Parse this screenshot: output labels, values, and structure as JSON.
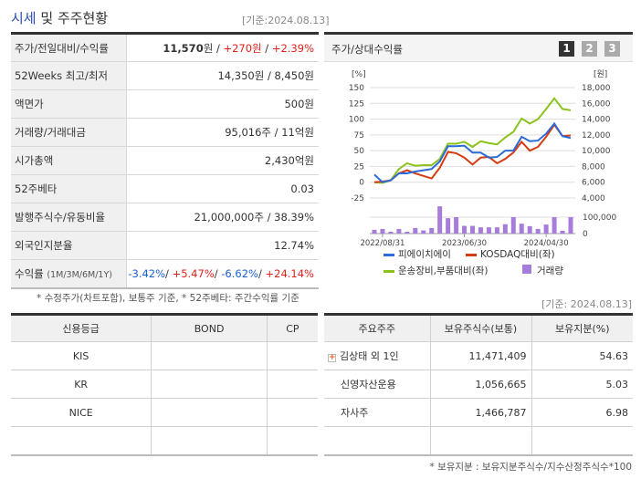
{
  "header": {
    "title_hl": "시세",
    "title_rest": " 및 주주현황",
    "date": "[기준:2024.08.13]"
  },
  "info": [
    {
      "k": "주가/전일대비/수익률",
      "v": [
        {
          "t": "11,570",
          "c": "b"
        },
        {
          "t": "원 / ",
          "c": ""
        },
        {
          "t": "+270원",
          "c": "red"
        },
        {
          "t": " / ",
          "c": ""
        },
        {
          "t": "+2.39%",
          "c": "red"
        }
      ]
    },
    {
      "k": "52Weeks 최고/최저",
      "v": [
        {
          "t": "14,350원 / 8,450원",
          "c": ""
        }
      ]
    },
    {
      "k": "액면가",
      "v": [
        {
          "t": "500원",
          "c": ""
        }
      ]
    },
    {
      "k": "거래량/거래대금",
      "v": [
        {
          "t": "95,016주 / 11억원",
          "c": ""
        }
      ]
    },
    {
      "k": "시가총액",
      "v": [
        {
          "t": "2,430억원",
          "c": ""
        }
      ]
    },
    {
      "k": "52주베타",
      "v": [
        {
          "t": "0.03",
          "c": ""
        }
      ]
    },
    {
      "k": "발행주식수/유동비율",
      "v": [
        {
          "t": "21,000,000주 / 38.39%",
          "c": ""
        }
      ]
    },
    {
      "k": "외국인지분율",
      "v": [
        {
          "t": "12.74%",
          "c": ""
        }
      ]
    },
    {
      "k": "수익률",
      "ksub": "(1M/3M/6M/1Y)",
      "v": [
        {
          "t": "-3.42%",
          "c": "blue"
        },
        {
          "t": "/ ",
          "c": ""
        },
        {
          "t": "+5.47%",
          "c": "red"
        },
        {
          "t": "/ ",
          "c": ""
        },
        {
          "t": "-6.62%",
          "c": "blue"
        },
        {
          "t": "/ ",
          "c": ""
        },
        {
          "t": "+24.14%",
          "c": "red"
        }
      ]
    }
  ],
  "note1": "* 수정주가(차트포함), 보통주 기준, * 52주베타: 주간수익률 기준",
  "chart_panel": {
    "title": "주가/상대수익률",
    "buttons": [
      "1",
      "2",
      "3"
    ],
    "active": "1"
  },
  "chart_data": {
    "type": "line",
    "left_unit": "[%]",
    "right_unit": "[원]",
    "left_ticks": [
      150,
      125,
      100,
      75,
      50,
      25,
      0,
      -25
    ],
    "right_ticks": [
      "18,000",
      "16,000",
      "14,000",
      "12,000",
      "10,000",
      "8,000",
      "6,000",
      "4,000"
    ],
    "ylim": [
      -25,
      150
    ],
    "volume_ticks": [
      "100,000",
      "0"
    ],
    "x_labels": [
      {
        "i": 1,
        "t": "2022/08/31"
      },
      {
        "i": 11,
        "t": "2023/06/30"
      },
      {
        "i": 21,
        "t": "2024/04/30"
      }
    ],
    "series": [
      {
        "name": "피에이치에이",
        "color": "#2a6bd9",
        "values": [
          12,
          0,
          3,
          14,
          14,
          17,
          19,
          21,
          33,
          57,
          57,
          58,
          47,
          47,
          39,
          40,
          50,
          50,
          72,
          65,
          66,
          77,
          93,
          73,
          70
        ]
      },
      {
        "name": "KOSDAQ대비(좌)",
        "color": "#d63a10",
        "values": [
          0,
          1,
          3,
          14,
          19,
          14,
          10,
          6,
          23,
          48,
          46,
          39,
          28,
          39,
          40,
          30,
          37,
          47,
          64,
          50,
          56,
          72,
          91,
          73,
          74
        ]
      },
      {
        "name": "운송장비,부품대비(좌)",
        "color": "#8cc21c",
        "values": [
          0,
          -1,
          3,
          21,
          30,
          26,
          27,
          27,
          37,
          61,
          61,
          64,
          56,
          65,
          62,
          60,
          71,
          80,
          101,
          93,
          100,
          116,
          133,
          116,
          114
        ]
      }
    ],
    "volume": {
      "name": "거래량",
      "color": "#a77ddb",
      "values": [
        23000,
        28000,
        11000,
        28000,
        11000,
        34000,
        19000,
        34000,
        166000,
        94000,
        100000,
        47000,
        47000,
        38000,
        38000,
        38000,
        57000,
        100000,
        60000,
        45000,
        28000,
        55000,
        100000,
        17000,
        100000
      ]
    }
  },
  "date2": "[기준: 2024.08.13]",
  "credit": {
    "headers": [
      "신용등급",
      "BOND",
      "CP"
    ],
    "rows": [
      [
        "KIS",
        "",
        ""
      ],
      [
        "KR",
        "",
        ""
      ],
      [
        "NICE",
        "",
        ""
      ],
      [
        "",
        "",
        ""
      ]
    ]
  },
  "holders": {
    "headers": [
      "주요주주",
      "보유주식수(보통)",
      "보유지분(%)"
    ],
    "rows": [
      [
        "김상태 외 1인",
        "11,471,409",
        "54.63"
      ],
      [
        "신영자산운용",
        "1,056,665",
        "5.03"
      ],
      [
        "자사주",
        "1,466,787",
        "6.98"
      ],
      [
        "",
        "",
        ""
      ]
    ]
  },
  "note2": "* 보유지분 : 보유지분주식수/지수산정주식수*100"
}
